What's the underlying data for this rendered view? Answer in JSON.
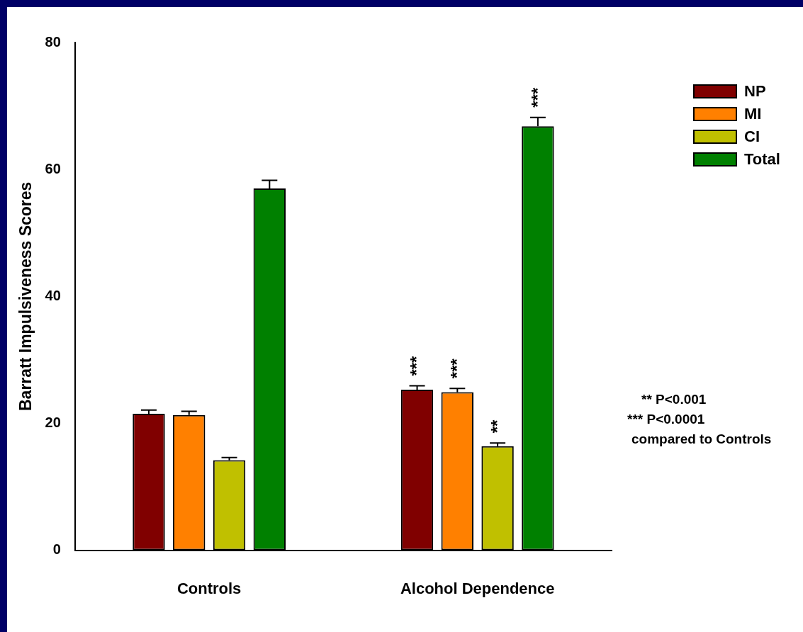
{
  "chart_data": {
    "type": "bar",
    "ylabel": "Barratt Impulsiveness Scores",
    "categories": [
      "Controls",
      "Alcohol Dependence"
    ],
    "series": [
      {
        "name": "NP",
        "color": "#800000",
        "values": [
          21.5,
          25.3
        ],
        "errors": [
          0.6,
          0.6
        ]
      },
      {
        "name": "MI",
        "color": "#ff8000",
        "values": [
          21.3,
          24.9
        ],
        "errors": [
          0.6,
          0.6
        ]
      },
      {
        "name": "CI",
        "color": "#c0c000",
        "values": [
          14.2,
          16.4
        ],
        "errors": [
          0.4,
          0.5
        ]
      },
      {
        "name": "Total",
        "color": "#008000",
        "values": [
          57.0,
          66.8
        ],
        "errors": [
          1.3,
          1.4
        ]
      }
    ],
    "ylim": [
      0,
      80
    ],
    "yticks": [
      0,
      20,
      40,
      60,
      80
    ],
    "grid": false,
    "legend": "top right",
    "annotations": [
      "***",
      "***",
      "**",
      "***",
      "** P<0.001",
      "*** P<0.0001",
      "compared to Controls"
    ]
  }
}
